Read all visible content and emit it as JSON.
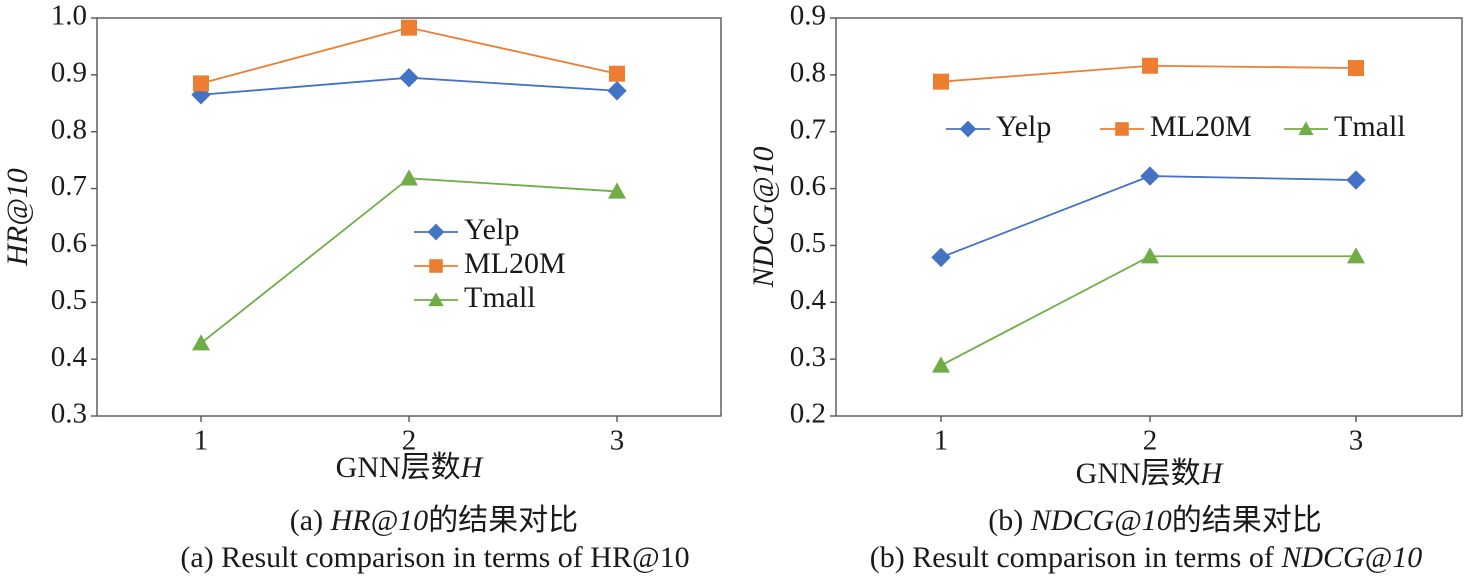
{
  "chart_data": [
    {
      "type": "line",
      "id": "a",
      "ylabel": "HR@10",
      "xlabel": "GNN层数H",
      "xlabel_prefix": "GNN层数",
      "xlabel_var": "H",
      "categories": [
        "1",
        "2",
        "3"
      ],
      "x": [
        1,
        2,
        3
      ],
      "ylim": [
        0.3,
        1.0
      ],
      "yticks": [
        "0.3",
        "0.4",
        "0.5",
        "0.6",
        "0.7",
        "0.8",
        "0.9",
        "1.0"
      ],
      "legend_position": "center-right",
      "series": [
        {
          "name": "Yelp",
          "values": [
            0.865,
            0.895,
            0.872
          ],
          "color": "#4472C4",
          "marker": "diamond"
        },
        {
          "name": "ML20M",
          "values": [
            0.885,
            0.983,
            0.902
          ],
          "color": "#ED7D31",
          "marker": "square"
        },
        {
          "name": "Tmall",
          "values": [
            0.428,
            0.718,
            0.695
          ],
          "color": "#70AD47",
          "marker": "triangle"
        }
      ],
      "caption_cn_prefix": "(a) ",
      "caption_cn_metric": "HR@10",
      "caption_cn_suffix": "的结果对比",
      "caption_en": "(a) Result comparison in terms of HR@10"
    },
    {
      "type": "line",
      "id": "b",
      "ylabel": "NDCG@10",
      "xlabel": "GNN层数H",
      "xlabel_prefix": "GNN层数",
      "xlabel_var": "H",
      "categories": [
        "1",
        "2",
        "3"
      ],
      "x": [
        1,
        2,
        3
      ],
      "ylim": [
        0.2,
        0.9
      ],
      "yticks": [
        "0.2",
        "0.3",
        "0.4",
        "0.5",
        "0.6",
        "0.7",
        "0.8",
        "0.9"
      ],
      "legend_position": "top (horizontal)",
      "series": [
        {
          "name": "Yelp",
          "values": [
            0.479,
            0.622,
            0.615
          ],
          "color": "#4472C4",
          "marker": "diamond"
        },
        {
          "name": "ML20M",
          "values": [
            0.788,
            0.816,
            0.812
          ],
          "color": "#ED7D31",
          "marker": "square"
        },
        {
          "name": "Tmall",
          "values": [
            0.289,
            0.481,
            0.481
          ],
          "color": "#70AD47",
          "marker": "triangle"
        }
      ],
      "caption_cn_prefix": "(b) ",
      "caption_cn_metric": "NDCG@10",
      "caption_cn_suffix": "的结果对比",
      "caption_en_prefix": "(b) Result comparison in terms of ",
      "caption_en_metric": "NDCG@10"
    }
  ]
}
